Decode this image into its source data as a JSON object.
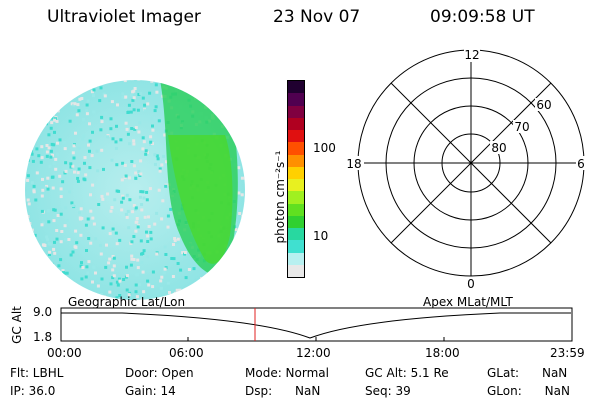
{
  "header": {
    "instrument": "Ultraviolet Imager",
    "date": "23 Nov 07",
    "time": "09:09:58 UT"
  },
  "colorbar": {
    "label": "photon cm⁻²s⁻¹",
    "tick_labels": [
      "100",
      "10"
    ],
    "colors": [
      "#e8e8e8",
      "#b8f0f0",
      "#40e0d0",
      "#28d8a0",
      "#30d030",
      "#60e020",
      "#a0f020",
      "#e8f020",
      "#ffd000",
      "#ff9000",
      "#ff5000",
      "#e01010",
      "#b00020",
      "#800040",
      "#500050",
      "#200030"
    ]
  },
  "polar_grid": {
    "mlt_labels": {
      "top": "12",
      "bottom": "0",
      "left": "18",
      "right": "6"
    },
    "lat_labels": [
      "60",
      "70",
      "80"
    ]
  },
  "timeline": {
    "left_label": "Geographic Lat/Lon",
    "right_label": "Apex MLat/MLT",
    "axis_title": "GC Alt",
    "y_ticks": [
      "9.0",
      "1.8"
    ],
    "x_ticks": [
      "00:00",
      "06:00",
      "12:00",
      "18:00",
      "23:59"
    ]
  },
  "info": {
    "flt": "Flt: LBHL",
    "ip": "IP: 36.0",
    "door": "Door: Open",
    "gain": "Gain: 14",
    "mode": "Mode: Normal",
    "dsp": "Dsp:      NaN",
    "gc_alt": "GC Alt: 5.1 Re",
    "seq": "Seq: 39",
    "glat": "GLat:      NaN",
    "glon": "GLon:      NaN"
  }
}
